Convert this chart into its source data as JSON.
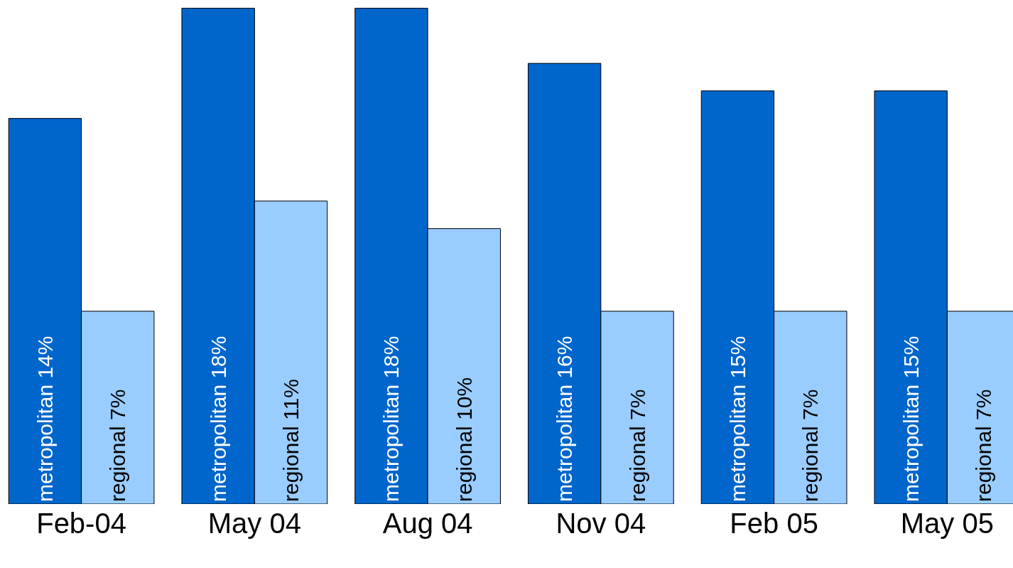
{
  "chart_data": {
    "type": "bar",
    "categories": [
      "Feb-04",
      "May 04",
      "Aug 04",
      "Nov 04",
      "Feb 05",
      "May 05"
    ],
    "ylim": [
      0,
      18.3
    ],
    "tick_labels": "x",
    "legend": false,
    "series": [
      {
        "color": "#0066cc",
        "values": [
          14,
          18,
          18,
          16,
          15,
          15
        ],
        "value_labels": [
          "metropolitan 14%",
          "metropolitan 18%",
          "metropolitan 18%",
          "metropolitan 16%",
          "metropolitan 15%",
          "metropolitan 15%"
        ]
      },
      {
        "color": "#99ccff",
        "values": [
          7,
          11,
          10,
          7,
          7,
          7
        ],
        "value_labels": [
          "regional 7%",
          "regional 11%",
          "regional 10%",
          "regional 7%",
          "regional 7%",
          "regional 7%"
        ]
      }
    ]
  }
}
